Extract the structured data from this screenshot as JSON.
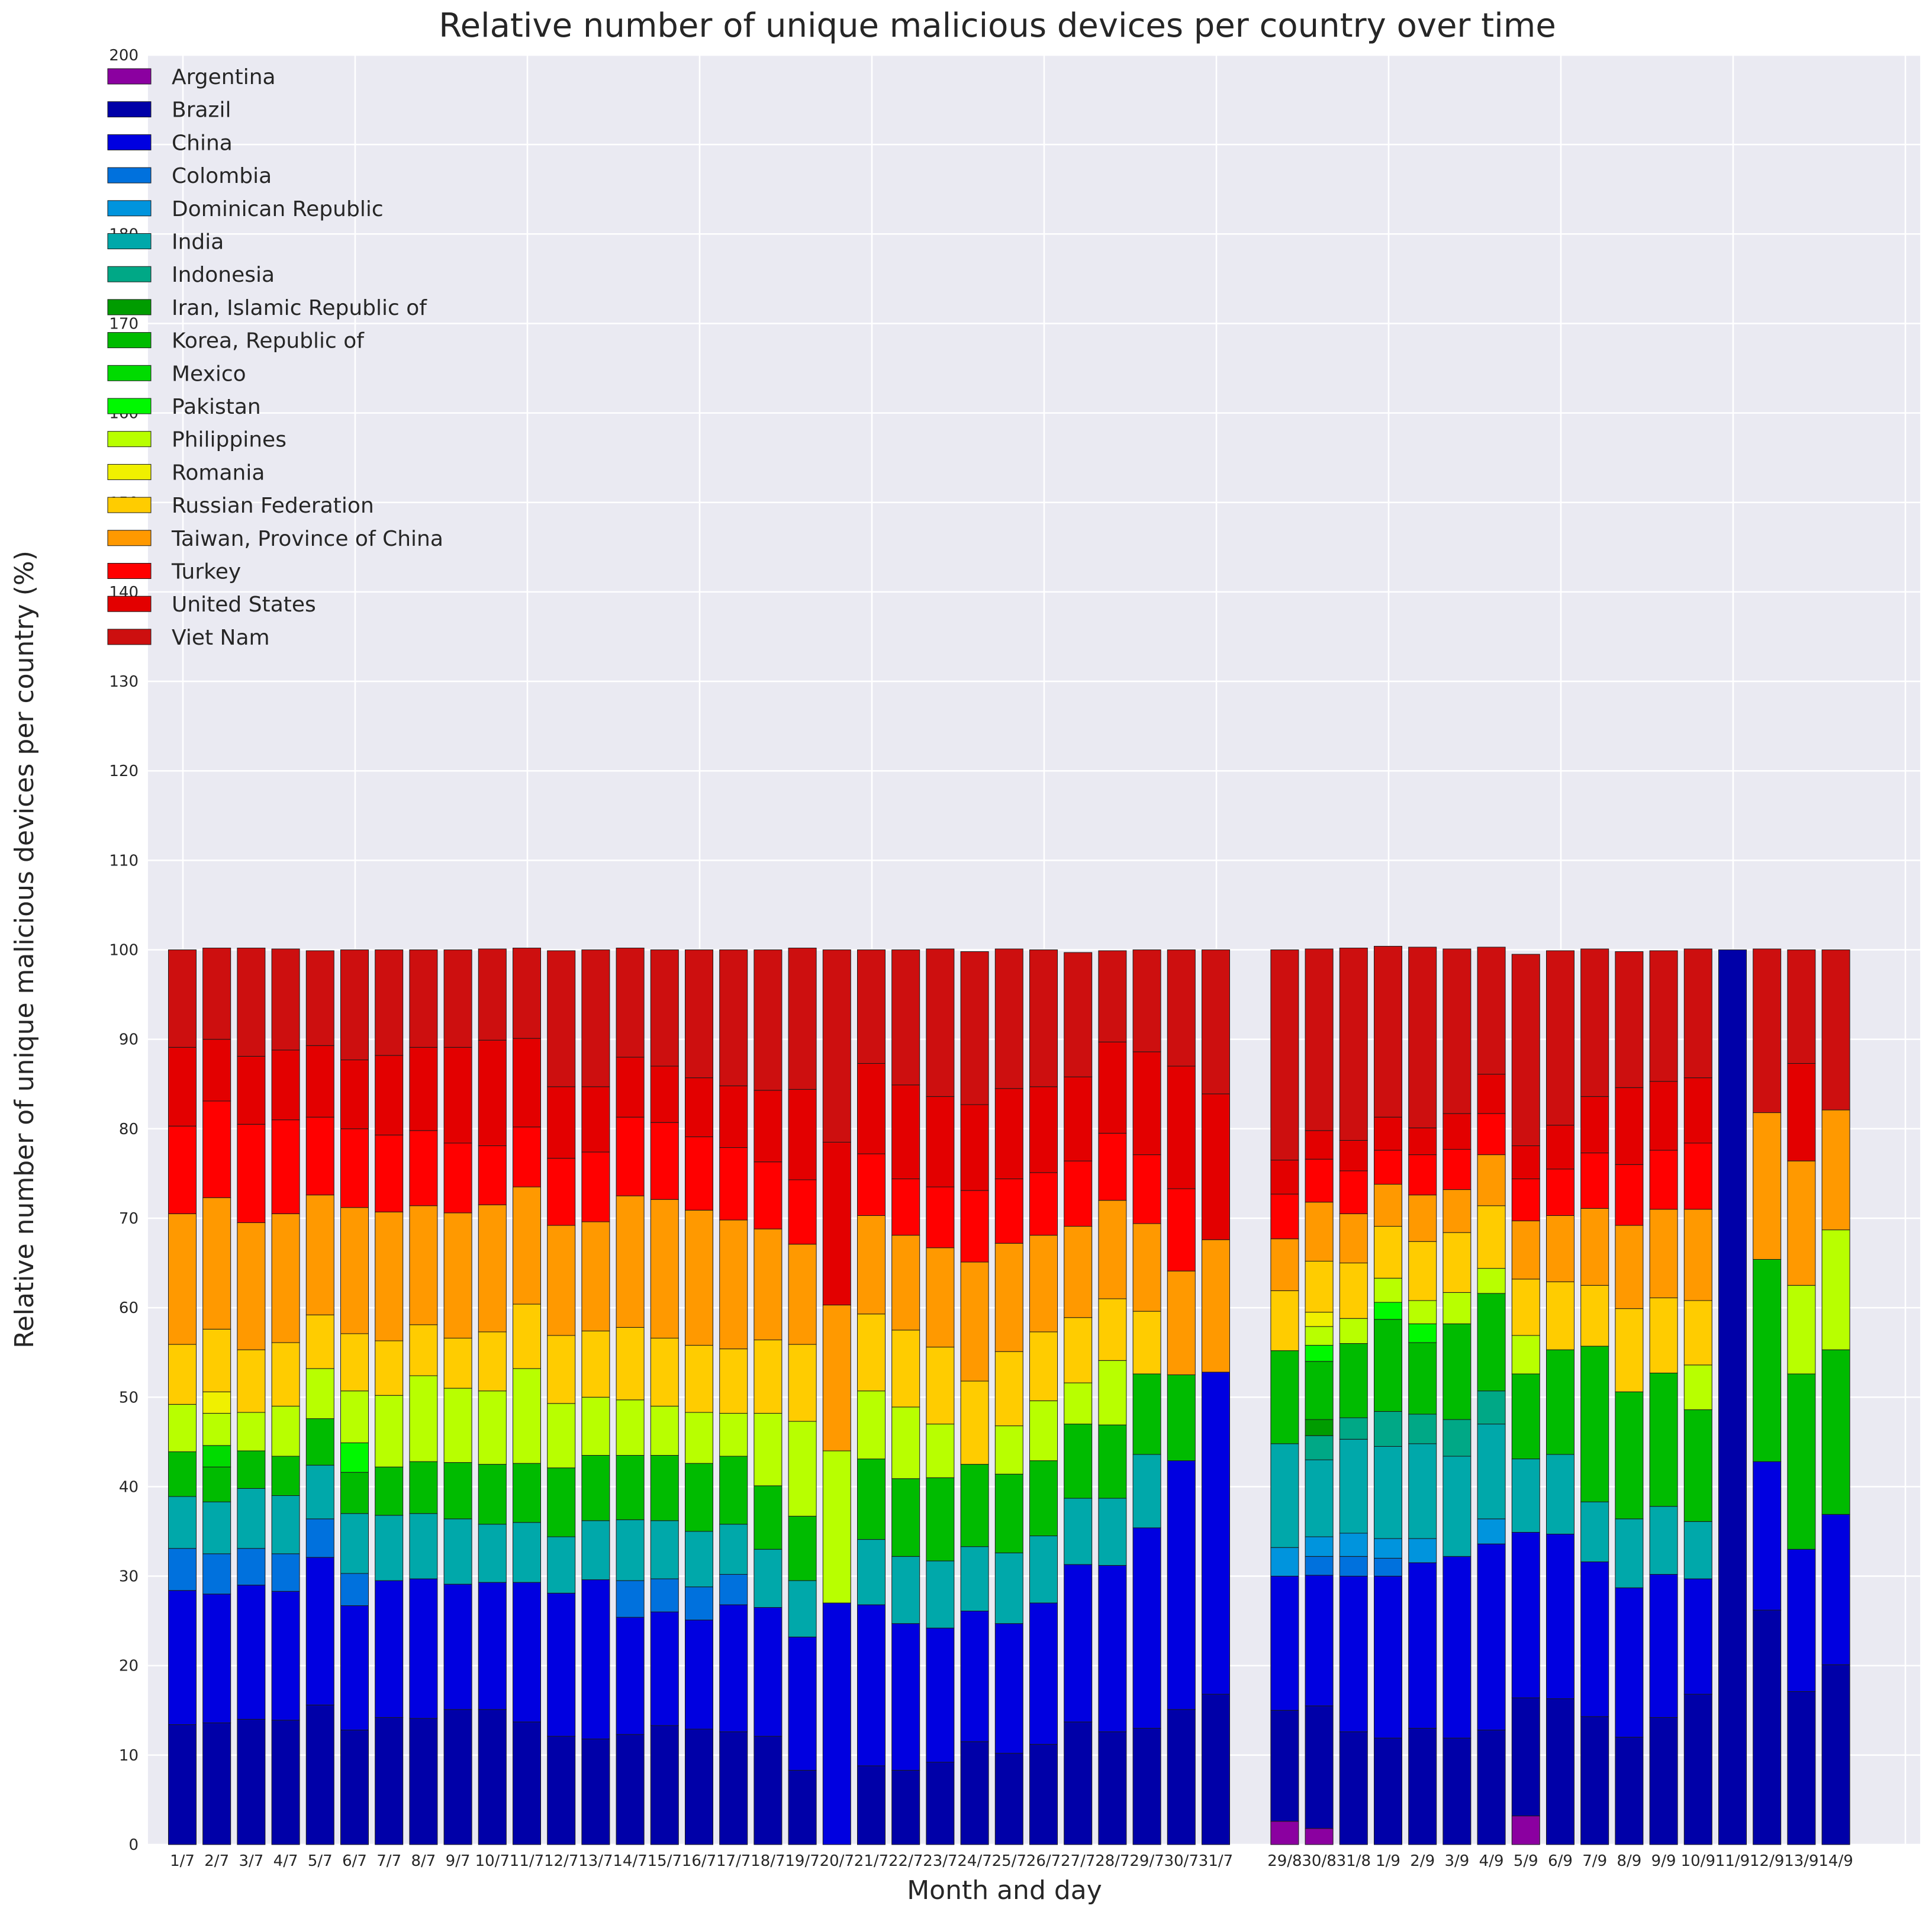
{
  "chart_data": {
    "type": "bar",
    "stacked": true,
    "title": "Relative number of unique malicious devices per country over time",
    "xlabel": "Month and day",
    "ylabel": "Relative number of unique malicious devices per country (%)",
    "ylim": [
      0,
      200
    ],
    "yticks": [
      0,
      10,
      20,
      30,
      40,
      50,
      60,
      70,
      80,
      90,
      100,
      110,
      120,
      130,
      140,
      150,
      160,
      170,
      180,
      190,
      200
    ],
    "grid": true,
    "legend_position": "top-left",
    "gap_after_index": 30,
    "categories": [
      "1/7",
      "2/7",
      "3/7",
      "4/7",
      "5/7",
      "6/7",
      "7/7",
      "8/7",
      "9/7",
      "10/7",
      "11/7",
      "12/7",
      "13/7",
      "14/7",
      "15/7",
      "16/7",
      "17/7",
      "18/7",
      "19/7",
      "20/7",
      "21/7",
      "22/7",
      "23/7",
      "24/7",
      "25/7",
      "26/7",
      "27/7",
      "28/7",
      "29/7",
      "30/7",
      "31/7",
      "29/8",
      "30/8",
      "31/8",
      "1/9",
      "2/9",
      "3/9",
      "4/9",
      "5/9",
      "6/9",
      "7/9",
      "8/9",
      "9/9",
      "10/9",
      "11/9",
      "12/9",
      "13/9",
      "14/9"
    ],
    "series": [
      {
        "name": "Argentina",
        "color": "#8b00a0",
        "values": [
          0,
          0,
          0,
          0,
          0,
          0,
          0,
          0,
          0,
          0,
          0,
          0,
          0,
          0,
          0,
          0,
          0,
          0,
          0,
          0,
          0,
          0,
          0,
          0,
          0,
          0,
          0,
          0,
          0,
          0,
          0,
          2.6,
          1.8,
          0,
          0,
          0,
          0,
          0,
          3.2,
          0,
          0,
          0,
          0,
          0,
          0,
          0,
          0,
          0
        ]
      },
      {
        "name": "Brazil",
        "color": "#0000a8",
        "values": [
          13.4,
          13.6,
          14.0,
          13.9,
          15.6,
          12.8,
          14.2,
          14.1,
          15.1,
          15.1,
          13.7,
          12.1,
          11.8,
          12.3,
          13.3,
          12.9,
          12.6,
          12.1,
          8.3,
          0,
          8.8,
          8.3,
          9.2,
          11.5,
          10.2,
          11.2,
          13.7,
          12.6,
          13.0,
          15.1,
          16.8,
          12.4,
          13.7,
          12.6,
          11.9,
          13.0,
          11.9,
          12.8,
          13.2,
          16.3,
          14.3,
          12.0,
          14.2,
          16.8,
          100,
          26.2,
          17.1,
          20.1
        ]
      },
      {
        "name": "China",
        "color": "#0000e0",
        "values": [
          15.0,
          14.4,
          15.0,
          14.4,
          16.5,
          13.9,
          15.3,
          15.6,
          14.0,
          14.2,
          15.6,
          16.0,
          17.8,
          13.1,
          12.7,
          12.2,
          14.2,
          14.4,
          14.9,
          27.0,
          18.0,
          16.4,
          15.0,
          14.6,
          14.5,
          15.8,
          17.6,
          18.6,
          22.4,
          27.8,
          36.0,
          15.0,
          14.6,
          17.4,
          18.1,
          18.5,
          20.3,
          20.8,
          18.5,
          18.4,
          17.3,
          16.7,
          16.0,
          12.9,
          0,
          16.6,
          15.9,
          16.8
        ]
      },
      {
        "name": "Colombia",
        "color": "#0071dd",
        "values": [
          4.7,
          4.5,
          4.1,
          4.2,
          4.3,
          3.6,
          0,
          0,
          0,
          0,
          0,
          0,
          0,
          4.1,
          3.7,
          3.7,
          3.4,
          0,
          0,
          0,
          0,
          0,
          0,
          0,
          0,
          0,
          0,
          0,
          0,
          0,
          0,
          0,
          2.1,
          2.2,
          2.0,
          0,
          0,
          0,
          0,
          0,
          0,
          0,
          0,
          0,
          0,
          0,
          0,
          0
        ]
      },
      {
        "name": "Dominican Republic",
        "color": "#0094dd",
        "values": [
          0,
          0,
          0,
          0,
          0,
          0,
          0,
          0,
          0,
          0,
          0,
          0,
          0,
          0,
          0,
          0,
          0,
          0,
          0,
          0,
          0,
          0,
          0,
          0,
          0,
          0,
          0,
          0,
          0,
          0,
          0,
          3.2,
          2.2,
          2.6,
          2.2,
          2.7,
          0,
          2.8,
          0,
          0,
          0,
          0,
          0,
          0,
          0,
          0,
          0,
          0
        ]
      },
      {
        "name": "India",
        "color": "#00a8aa",
        "values": [
          5.8,
          5.8,
          6.7,
          6.5,
          6.0,
          6.7,
          7.3,
          7.3,
          7.3,
          6.5,
          6.7,
          6.3,
          6.6,
          6.8,
          6.5,
          6.2,
          5.6,
          6.5,
          6.3,
          0,
          7.3,
          7.5,
          7.5,
          7.2,
          7.9,
          7.5,
          7.4,
          7.5,
          8.2,
          0,
          0,
          11.6,
          8.6,
          10.5,
          10.3,
          10.6,
          11.2,
          10.6,
          8.2,
          8.9,
          6.7,
          7.7,
          7.6,
          6.4,
          0,
          0,
          0,
          0
        ]
      },
      {
        "name": "Indonesia",
        "color": "#00a886",
        "values": [
          0,
          0,
          0,
          0,
          0,
          0,
          0,
          0,
          0,
          0,
          0,
          0,
          0,
          0,
          0,
          0,
          0,
          0,
          0,
          0,
          0,
          0,
          0,
          0,
          0,
          0,
          0,
          0,
          0,
          0,
          0,
          0,
          2.7,
          2.4,
          3.9,
          3.3,
          4.1,
          3.7,
          0,
          0,
          0,
          0,
          0,
          0,
          0,
          0,
          0,
          0
        ]
      },
      {
        "name": "Iran, Islamic Republic of",
        "color": "#009c00",
        "values": [
          0,
          0,
          0,
          0,
          0,
          0,
          0,
          0,
          0,
          0,
          0,
          0,
          0,
          0,
          0,
          0,
          0,
          0,
          0,
          0,
          0,
          0,
          0,
          0,
          0,
          0,
          0,
          0,
          0,
          0,
          0,
          0,
          1.8,
          0,
          0,
          0,
          0,
          0,
          0,
          0,
          0,
          0,
          0,
          0,
          0,
          0,
          0,
          0
        ]
      },
      {
        "name": "Korea, Republic of",
        "color": "#00bb00",
        "values": [
          5.0,
          3.9,
          4.2,
          4.4,
          5.2,
          4.6,
          5.4,
          5.8,
          6.3,
          6.7,
          6.6,
          7.7,
          7.3,
          7.2,
          7.3,
          7.6,
          7.6,
          7.1,
          7.2,
          0,
          9.0,
          8.7,
          9.3,
          9.2,
          8.8,
          8.4,
          8.3,
          8.2,
          9.0,
          9.6,
          0,
          10.4,
          6.5,
          8.3,
          10.3,
          8.0,
          10.7,
          10.9,
          9.5,
          11.7,
          17.4,
          14.2,
          14.9,
          12.5,
          0,
          22.6,
          19.6,
          18.4
        ]
      },
      {
        "name": "Mexico",
        "color": "#00db00",
        "values": [
          0,
          2.4,
          0,
          0,
          0,
          0,
          0,
          0,
          0,
          0,
          0,
          0,
          0,
          0,
          0,
          0,
          0,
          0,
          0,
          0,
          0,
          0,
          0,
          0,
          0,
          0,
          0,
          0,
          0,
          0,
          0,
          0,
          0,
          0,
          0,
          0,
          0,
          0,
          0,
          0,
          0,
          0,
          0,
          0,
          0,
          0,
          0,
          0
        ]
      },
      {
        "name": "Pakistan",
        "color": "#00f800",
        "values": [
          0,
          0,
          0,
          0,
          0,
          3.3,
          0,
          0,
          0,
          0,
          0,
          0,
          0,
          0,
          0,
          0,
          0,
          0,
          0,
          0,
          0,
          0,
          0,
          0,
          0,
          0,
          0,
          0,
          0,
          0,
          0,
          0,
          1.8,
          0,
          1.9,
          2.1,
          0,
          0,
          0,
          0,
          0,
          0,
          0,
          0,
          0,
          0,
          0,
          0
        ]
      },
      {
        "name": "Philippines",
        "color": "#b8ff00",
        "values": [
          5.3,
          3.6,
          4.3,
          5.6,
          5.6,
          5.8,
          8.0,
          9.6,
          8.3,
          8.2,
          10.6,
          7.2,
          6.5,
          6.2,
          5.5,
          5.7,
          4.8,
          8.1,
          10.6,
          17.0,
          7.6,
          8.0,
          6.0,
          0,
          5.4,
          6.7,
          4.6,
          7.2,
          0,
          0,
          0,
          0,
          2.1,
          2.8,
          2.7,
          2.6,
          3.5,
          2.8,
          4.3,
          0,
          0,
          0,
          0,
          5.0,
          0,
          0,
          9.9,
          13.4
        ]
      },
      {
        "name": "Romania",
        "color": "#f0f000",
        "values": [
          0,
          2.4,
          0,
          0,
          0,
          0,
          0,
          0,
          0,
          0,
          0,
          0,
          0,
          0,
          0,
          0,
          0,
          0,
          0,
          0,
          0,
          0,
          0,
          0,
          0,
          0,
          0,
          0,
          0,
          0,
          0,
          0,
          1.6,
          0,
          0,
          0,
          0,
          0,
          0,
          0,
          0,
          0,
          0,
          0,
          0,
          0,
          0,
          0
        ]
      },
      {
        "name": "Russian Federation",
        "color": "#ffcc00",
        "values": [
          6.7,
          7.0,
          7.0,
          7.1,
          6.0,
          6.4,
          6.1,
          5.7,
          5.6,
          6.6,
          7.2,
          7.6,
          7.4,
          8.1,
          7.6,
          7.5,
          7.2,
          8.2,
          8.6,
          0,
          8.6,
          8.6,
          8.6,
          9.3,
          8.3,
          7.7,
          7.3,
          6.9,
          7.0,
          0,
          0,
          6.7,
          5.7,
          6.2,
          5.8,
          6.6,
          6.7,
          7.0,
          6.3,
          7.6,
          6.8,
          9.3,
          8.4,
          7.2,
          0,
          0,
          0,
          0
        ]
      },
      {
        "name": "Taiwan, Province of China",
        "color": "#ff9900",
        "values": [
          14.6,
          14.7,
          14.2,
          14.4,
          13.4,
          14.1,
          14.4,
          13.3,
          14.0,
          14.2,
          13.1,
          12.3,
          12.2,
          14.7,
          15.5,
          15.1,
          14.4,
          12.4,
          11.2,
          16.3,
          11.0,
          10.6,
          11.1,
          13.3,
          12.1,
          10.8,
          10.2,
          11.0,
          9.8,
          11.6,
          14.8,
          5.8,
          6.6,
          5.5,
          4.7,
          5.2,
          4.8,
          5.7,
          6.5,
          7.4,
          8.6,
          9.3,
          9.9,
          10.2,
          0,
          16.4,
          13.9,
          13.4
        ]
      },
      {
        "name": "Turkey",
        "color": "#ff0000",
        "values": [
          9.8,
          10.8,
          11.0,
          10.5,
          8.7,
          8.8,
          8.6,
          8.4,
          7.8,
          6.6,
          6.7,
          7.5,
          7.8,
          8.8,
          8.6,
          8.2,
          8.1,
          7.5,
          7.2,
          0,
          6.9,
          6.3,
          6.8,
          8.0,
          7.2,
          7.0,
          7.3,
          7.5,
          7.7,
          9.2,
          0,
          5.0,
          4.8,
          4.8,
          3.8,
          4.5,
          4.5,
          4.6,
          4.7,
          5.2,
          6.2,
          6.8,
          6.6,
          7.4,
          0,
          0,
          0,
          0
        ]
      },
      {
        "name": "United States",
        "color": "#e30000",
        "values": [
          8.8,
          6.9,
          7.6,
          7.8,
          8.0,
          7.7,
          8.9,
          9.3,
          10.7,
          11.8,
          9.9,
          8.0,
          7.3,
          6.7,
          6.3,
          6.6,
          6.9,
          8.0,
          10.1,
          18.2,
          10.1,
          10.5,
          10.1,
          9.6,
          10.1,
          9.6,
          9.4,
          10.2,
          11.5,
          13.7,
          16.3,
          3.8,
          3.2,
          3.4,
          3.7,
          3.0,
          4.0,
          4.4,
          3.7,
          4.9,
          6.3,
          8.6,
          7.7,
          7.3,
          0,
          0,
          10.9,
          0
        ]
      },
      {
        "name": "Viet Nam",
        "color": "#cd0f0f",
        "values": [
          10.9,
          10.2,
          12.1,
          11.3,
          10.6,
          12.3,
          11.8,
          10.9,
          10.9,
          10.2,
          10.1,
          15.2,
          15.3,
          12.2,
          13.0,
          14.3,
          15.2,
          15.7,
          15.8,
          21.5,
          12.7,
          15.1,
          16.5,
          17.1,
          15.6,
          15.3,
          13.9,
          10.2,
          11.4,
          13.0,
          16.1,
          23.5,
          20.3,
          21.5,
          19.1,
          20.2,
          18.4,
          14.2,
          21.4,
          19.5,
          16.5,
          15.2,
          14.6,
          14.4,
          0,
          18.3,
          12.7,
          17.9
        ]
      }
    ]
  }
}
